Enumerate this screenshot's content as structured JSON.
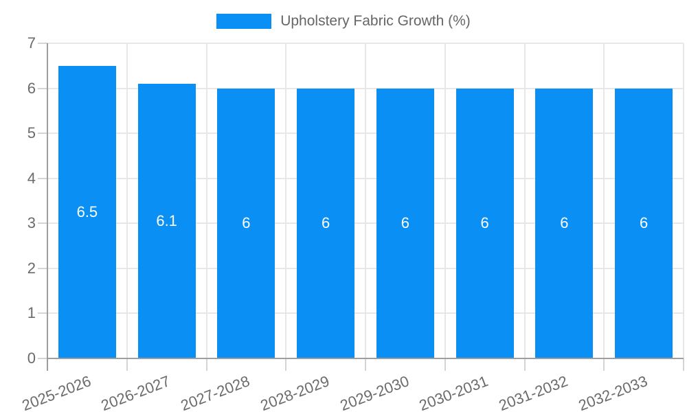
{
  "chart_data": {
    "type": "bar",
    "legend": "Upholstery Fabric Growth (%)",
    "legend_position": "top",
    "categories": [
      "2025-2026",
      "2026-2027",
      "2027-2028",
      "2028-2029",
      "2029-2030",
      "2030-2031",
      "2031-2032",
      "2032-2033"
    ],
    "values": [
      6.5,
      6.1,
      6,
      6,
      6,
      6,
      6,
      6
    ],
    "bar_labels": [
      "6.5",
      "6.1",
      "6",
      "6",
      "6",
      "6",
      "6",
      "6"
    ],
    "yticks": [
      "0",
      "1",
      "2",
      "3",
      "4",
      "5",
      "6",
      "7"
    ],
    "ylim": [
      0,
      7
    ],
    "xlabel": "",
    "ylabel": "",
    "grid": true,
    "colors": {
      "bar": "#0a90f4",
      "value_label": "#ffffff",
      "axis_line": "#9e9e9e",
      "gridline": "#e7e7e7",
      "tick_mark": "#d4d4d4",
      "axis_text": "#6b6b6b",
      "legend_text": "#666666",
      "background": "#ffffff"
    }
  }
}
